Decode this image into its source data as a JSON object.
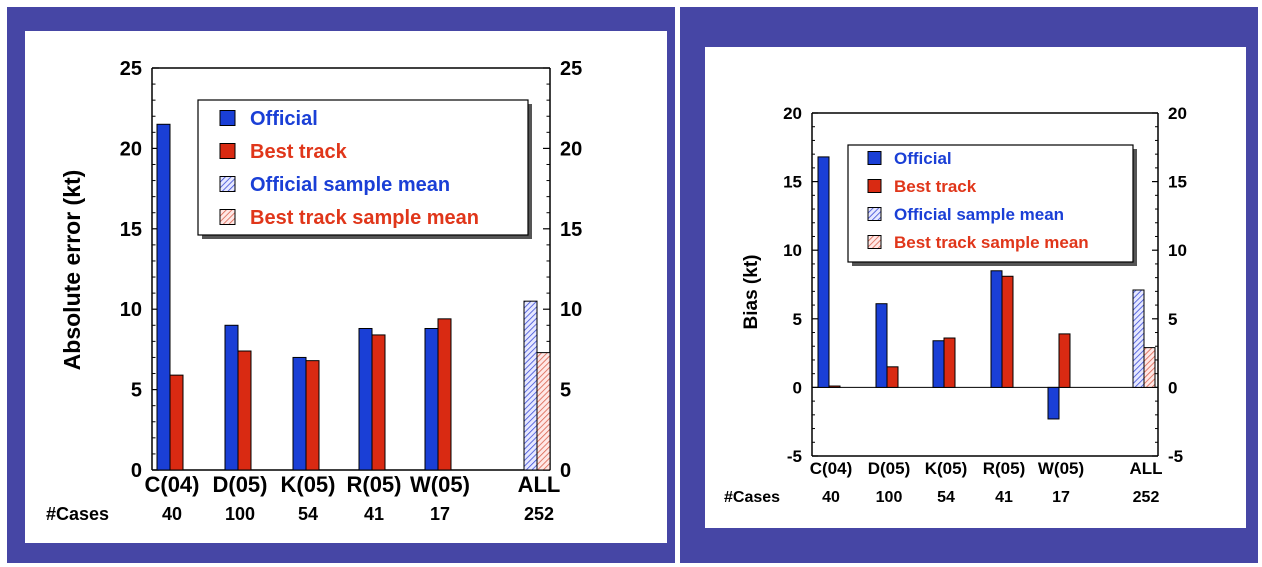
{
  "charts": {
    "left": {
      "type": "bar",
      "ylabel": "Absolute error (kt)",
      "ylim": [
        0,
        25
      ],
      "yticks": [
        0,
        5,
        10,
        15,
        20,
        25
      ],
      "cases_label": "#Cases",
      "categories": [
        "C(04)",
        "D(05)",
        "K(05)",
        "R(05)",
        "W(05)",
        "ALL"
      ],
      "cases": [
        "40",
        "100",
        "54",
        "41",
        "17",
        "252"
      ],
      "series": [
        {
          "name": "Official",
          "values": [
            21.5,
            9.0,
            7.0,
            8.8,
            8.8,
            null
          ]
        },
        {
          "name": "Best track",
          "values": [
            5.9,
            7.4,
            6.8,
            8.4,
            9.4,
            null
          ]
        },
        {
          "name": "Official sample mean",
          "values": [
            null,
            null,
            null,
            null,
            null,
            10.5
          ]
        },
        {
          "name": "Best track sample mean",
          "values": [
            null,
            null,
            null,
            null,
            null,
            7.3
          ]
        }
      ]
    },
    "right": {
      "type": "bar",
      "ylabel": "Bias (kt)",
      "ylim": [
        -5,
        20
      ],
      "yticks": [
        -5,
        0,
        5,
        10,
        15,
        20
      ],
      "cases_label": "#Cases",
      "categories": [
        "C(04)",
        "D(05)",
        "K(05)",
        "R(05)",
        "W(05)",
        "ALL"
      ],
      "cases": [
        "40",
        "100",
        "54",
        "41",
        "17",
        "252"
      ],
      "series": [
        {
          "name": "Official",
          "values": [
            16.8,
            6.1,
            3.4,
            8.5,
            -2.3,
            null
          ]
        },
        {
          "name": "Best track",
          "values": [
            0.1,
            1.5,
            3.6,
            8.1,
            3.9,
            null
          ]
        },
        {
          "name": "Official sample mean",
          "values": [
            null,
            null,
            null,
            null,
            null,
            7.1
          ]
        },
        {
          "name": "Best track sample mean",
          "values": [
            null,
            null,
            null,
            null,
            null,
            2.9
          ]
        }
      ]
    }
  },
  "colors": {
    "panel": "#4646a5",
    "official": "#1a3fd6",
    "best_track": "#d92a12",
    "official_text": "#1a3fd6",
    "best_track_text": "#e0361a"
  }
}
